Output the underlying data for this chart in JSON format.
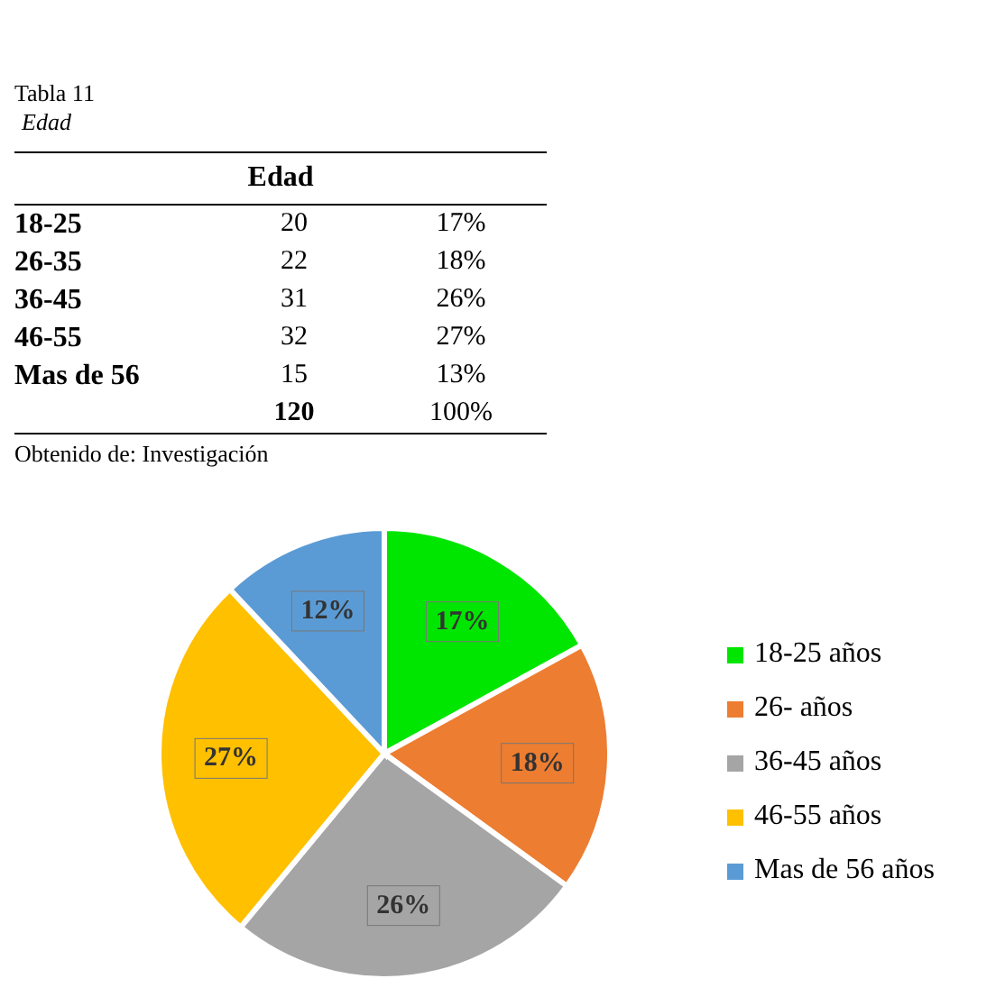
{
  "chart_data": {
    "type": "pie",
    "title": "Tabla 11",
    "subtitle": "Edad",
    "categories": [
      "18-25 años",
      "26- años",
      "36-45 años",
      "46-55 años",
      "Mas de 56 años"
    ],
    "values": [
      17,
      18,
      26,
      27,
      12
    ],
    "value_labels": [
      "17%",
      "18%",
      "26%",
      "27%",
      "12%"
    ],
    "colors": [
      "#00e600",
      "#ed7d31",
      "#a5a5a5",
      "#ffc000",
      "#5b9bd5"
    ],
    "legend": "right",
    "annotations": [
      "Edad",
      "18-25",
      "20",
      "17%",
      "26-35",
      "22",
      "18%",
      "36-45",
      "31",
      "26%",
      "46-55",
      "32",
      "27%",
      "Mas de 56",
      "15",
      "13%",
      "120",
      "100%",
      "Obtenido de: Investigación"
    ]
  }
}
